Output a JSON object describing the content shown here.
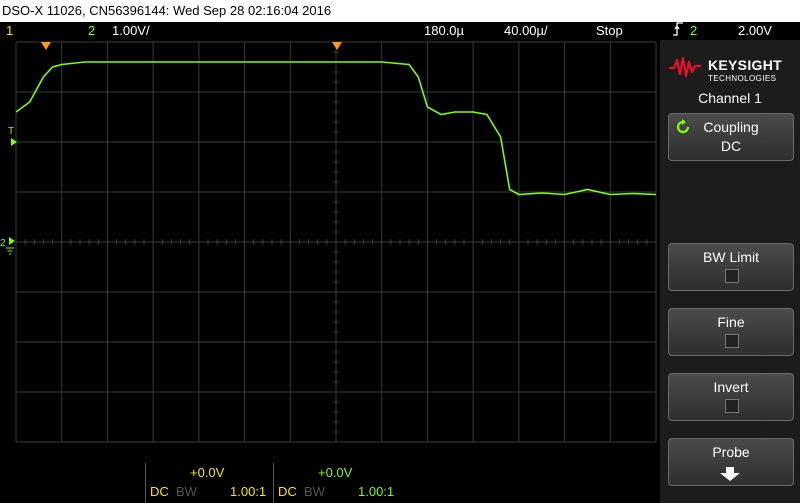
{
  "title_bar": {
    "text": "DSO-X 11026, CN56396144: Wed Sep 28 02:16:04 2016"
  },
  "status_bar": {
    "ch1_label": "1",
    "ch2_label": "2",
    "ch2_scale": "1.00V/",
    "time_delay": "180.0µ",
    "time_scale": "40.00µ/",
    "run_state": "Stop",
    "trigger_channel": "2",
    "trigger_level": "2.00V"
  },
  "markers": {
    "trigger_level_label": "T",
    "ch2_ground_label": "2"
  },
  "bottom_bar": {
    "ch1": {
      "offset": "+0.0V",
      "coupling": "DC",
      "bw": "BW",
      "probe": "1.00:1"
    },
    "ch2": {
      "offset": "+0.0V",
      "coupling": "DC",
      "bw": "BW",
      "probe": "1.00:1"
    }
  },
  "side_panel": {
    "brand": "KEYSIGHT",
    "brand_sub": "TECHNOLOGIES",
    "menu_title": "Channel 1",
    "softkeys": [
      {
        "label": "Coupling",
        "value": "DC"
      },
      {
        "label": "BW Limit",
        "checked": false
      },
      {
        "label": "Fine",
        "checked": false
      },
      {
        "label": "Invert",
        "checked": false
      },
      {
        "label": "Probe"
      }
    ]
  },
  "colors": {
    "ch1": "#ffe600",
    "ch2": "#7fff00",
    "trigger_marker": "#ff9a1f",
    "grid": "#3a3a3a"
  },
  "chart_data": {
    "type": "line",
    "series": [
      {
        "x": [
          0,
          0.3,
          0.6,
          0.8,
          1.0,
          1.5,
          2.0,
          3.0,
          4.0,
          5.0,
          6.0,
          7.0,
          8.0,
          8.6,
          8.8,
          9.0,
          9.3,
          9.6,
          10.0,
          10.3,
          10.6,
          10.8,
          11.0,
          11.5,
          12.0,
          12.5,
          13.0,
          13.5,
          14.0
        ],
        "y": [
          2.6,
          2.8,
          3.3,
          3.5,
          3.55,
          3.6,
          3.6,
          3.6,
          3.6,
          3.6,
          3.6,
          3.6,
          3.6,
          3.55,
          3.3,
          2.7,
          2.55,
          2.6,
          2.6,
          2.55,
          2.1,
          1.05,
          0.95,
          0.98,
          0.95,
          1.05,
          0.95,
          0.97,
          0.95
        ]
      }
    ]
  }
}
